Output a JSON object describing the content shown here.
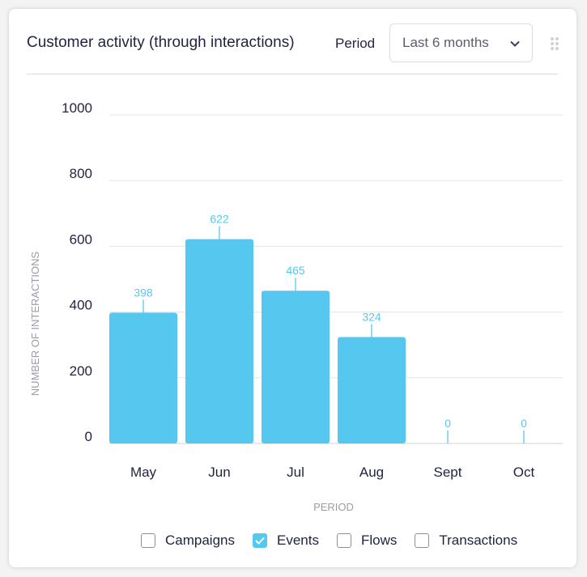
{
  "header": {
    "title": "Customer activity (through interactions)",
    "period_label": "Period",
    "period_value": "Last 6 months"
  },
  "legend": [
    {
      "label": "Campaigns",
      "checked": false
    },
    {
      "label": "Events",
      "checked": true
    },
    {
      "label": "Flows",
      "checked": false
    },
    {
      "label": "Transactions",
      "checked": false
    }
  ],
  "colors": {
    "bar": "#56c8ef",
    "label": "#56c8ef"
  },
  "chart_data": {
    "type": "bar",
    "title": "Customer activity (through interactions)",
    "xlabel": "PERIOD",
    "ylabel": "NUMBER OF INTERACTIONS",
    "categories": [
      "May",
      "Jun",
      "Jul",
      "Aug",
      "Sept",
      "Oct"
    ],
    "values": [
      398,
      622,
      465,
      324,
      0,
      0
    ],
    "yticks": [
      0,
      200,
      400,
      600,
      800,
      1000
    ],
    "ylim": [
      0,
      1000
    ],
    "grid": true
  }
}
